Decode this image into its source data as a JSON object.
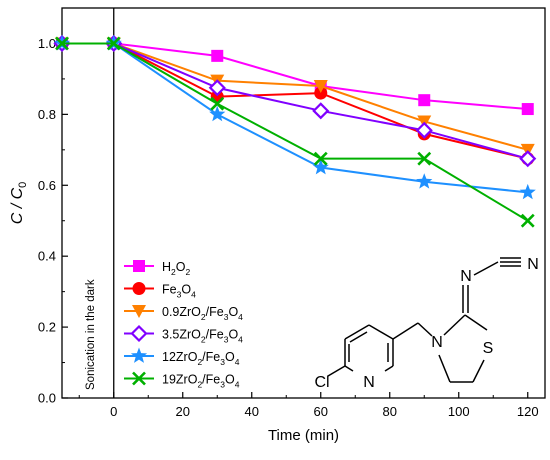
{
  "chart_data": {
    "type": "line",
    "xlabel": "Time (min)",
    "ylabel": {
      "main": "C / C",
      "sub": "0"
    },
    "xlim": [
      -15,
      125
    ],
    "ylim": [
      0.0,
      1.1
    ],
    "xticks": [
      0,
      20,
      40,
      60,
      80,
      100,
      120
    ],
    "xtick_labels": [
      "0",
      "20",
      "40",
      "60",
      "80",
      "100",
      "120"
    ],
    "yticks": [
      0.0,
      0.2,
      0.4,
      0.6,
      0.8,
      1.0
    ],
    "ytick_labels": [
      "0.0",
      "0.2",
      "0.4",
      "0.6",
      "0.8",
      "1.0"
    ],
    "grid": false,
    "legend_position": "bottom-left",
    "dark_phase_boundary_x": 0,
    "dark_phase_label": "Sonication in the dark",
    "series": [
      {
        "name": [
          "H",
          "2",
          "O",
          "2"
        ],
        "color": "#ff00ff",
        "marker": "square",
        "x": [
          -15,
          0,
          30,
          60,
          90,
          120
        ],
        "y": [
          1.0,
          1.0,
          0.965,
          0.88,
          0.84,
          0.815
        ]
      },
      {
        "name": [
          "Fe",
          "3",
          "O",
          "4"
        ],
        "color": "#ff0000",
        "marker": "circle",
        "x": [
          -15,
          0,
          30,
          60,
          90,
          120
        ],
        "y": [
          1.0,
          1.0,
          0.85,
          0.86,
          0.745,
          0.675
        ]
      },
      {
        "name": [
          "0.9ZrO",
          "2",
          "/Fe",
          "3",
          "O",
          "4"
        ],
        "color": "#ff8000",
        "marker": "triangle-down",
        "x": [
          -15,
          0,
          30,
          60,
          90,
          120
        ],
        "y": [
          1.0,
          1.0,
          0.895,
          0.88,
          0.78,
          0.7
        ]
      },
      {
        "name": [
          "3.5ZrO",
          "2",
          "/Fe",
          "3",
          "O",
          "4"
        ],
        "color": "#8000ff",
        "marker": "diamond",
        "x": [
          -15,
          0,
          30,
          60,
          90,
          120
        ],
        "y": [
          1.0,
          1.0,
          0.875,
          0.81,
          0.755,
          0.675
        ]
      },
      {
        "name": [
          "12ZrO",
          "2",
          "/Fe",
          "3",
          "O",
          "4"
        ],
        "color": "#1e90ff",
        "marker": "star",
        "x": [
          -15,
          0,
          30,
          60,
          90,
          120
        ],
        "y": [
          1.0,
          1.0,
          0.8,
          0.65,
          0.61,
          0.58
        ]
      },
      {
        "name": [
          "19ZrO",
          "2",
          "/Fe",
          "3",
          "O",
          "4"
        ],
        "color": "#00b000",
        "marker": "x",
        "x": [
          -15,
          0,
          30,
          60,
          90,
          120
        ],
        "y": [
          1.0,
          1.0,
          0.83,
          0.675,
          0.675,
          0.5
        ]
      }
    ],
    "molecule_labels": {
      "cl": "Cl",
      "n_ring": "N",
      "n_ring2": "N",
      "s": "S",
      "n_imine": "N",
      "n_nitrile": "N"
    }
  }
}
